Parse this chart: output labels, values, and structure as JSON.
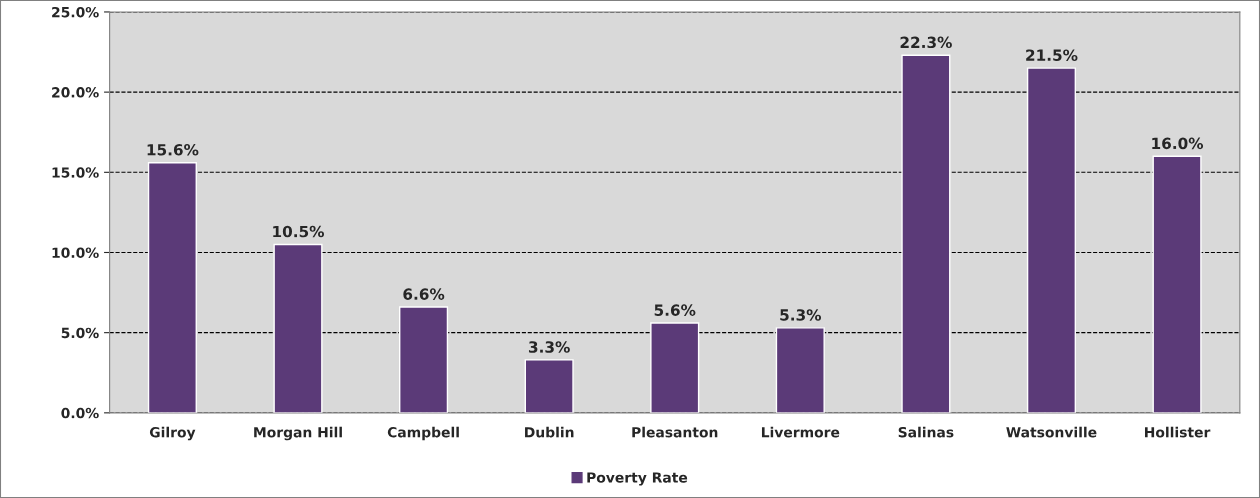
{
  "chart_data": {
    "type": "bar",
    "categories": [
      "Gilroy",
      "Morgan Hill",
      "Campbell",
      "Dublin",
      "Pleasanton",
      "Livermore",
      "Salinas",
      "Watsonville",
      "Hollister"
    ],
    "series": [
      {
        "name": "Poverty Rate",
        "color": "#5b3a78",
        "values": [
          15.6,
          10.5,
          6.6,
          3.3,
          5.6,
          5.3,
          22.3,
          21.5,
          16.0
        ],
        "value_labels": [
          "15.6%",
          "10.5%",
          "6.6%",
          "3.3%",
          "5.6%",
          "5.3%",
          "22.3%",
          "21.5%",
          "16.0%"
        ]
      }
    ],
    "ylim": [
      0,
      25
    ],
    "yticks": [
      {
        "value": 0,
        "label": "0.0%"
      },
      {
        "value": 5,
        "label": "5.0%"
      },
      {
        "value": 10,
        "label": "10.0%"
      },
      {
        "value": 15,
        "label": "15.0%"
      },
      {
        "value": 20,
        "label": "20.0%"
      },
      {
        "value": 25,
        "label": "25.0%"
      }
    ],
    "grid": "y",
    "line_style": "dashed",
    "legend": "bottom"
  }
}
